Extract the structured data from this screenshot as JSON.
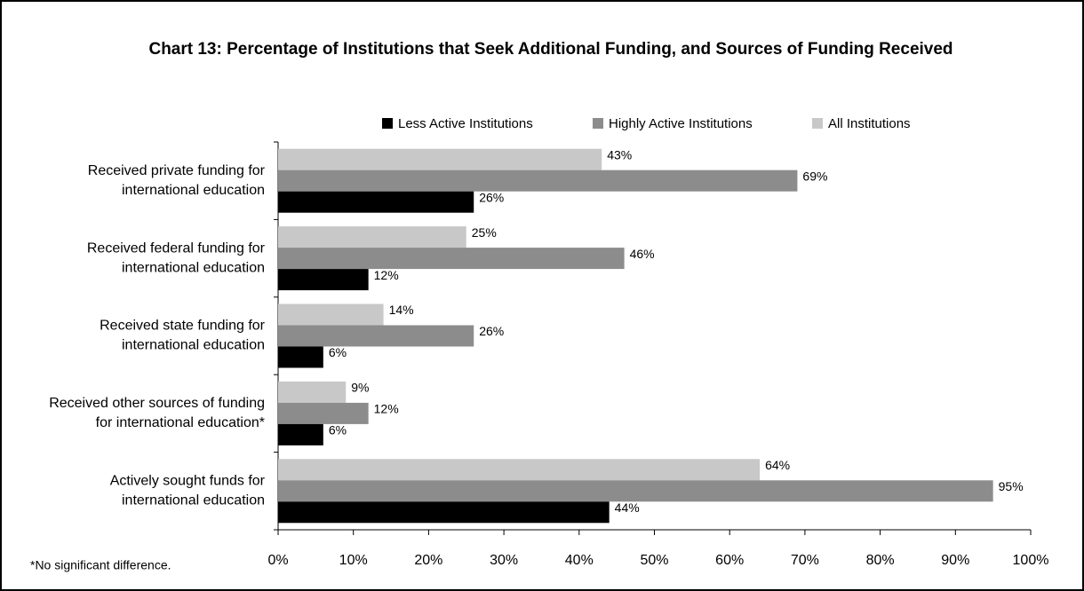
{
  "chart_data": {
    "type": "barh",
    "title": "Chart 13: Percentage of Institutions that Seek Additional Funding, and Sources of Funding Received",
    "categories": [
      [
        "Received private funding for",
        "international education"
      ],
      [
        "Received federal funding for",
        "international education"
      ],
      [
        "Received state funding for",
        "international education"
      ],
      [
        "Received other sources of funding",
        "for international education*"
      ],
      [
        "Actively sought funds for",
        "international education"
      ]
    ],
    "series": [
      {
        "name": "Less Active Institutions",
        "color": "#000000",
        "values": [
          26,
          12,
          6,
          6,
          44
        ],
        "value_labels": [
          "26%",
          "12%",
          "6%",
          "6%",
          "44%"
        ]
      },
      {
        "name": "Highly Active Institutions",
        "color": "#8c8c8c",
        "values": [
          69,
          46,
          26,
          12,
          95
        ],
        "value_labels": [
          "69%",
          "46%",
          "26%",
          "12%",
          "95%"
        ]
      },
      {
        "name": "All Institutions",
        "color": "#c8c8c8",
        "values": [
          43,
          25,
          14,
          9,
          64
        ],
        "value_labels": [
          "43%",
          "25%",
          "14%",
          "9%",
          "64%"
        ]
      }
    ],
    "xlim": [
      0,
      100
    ],
    "xticks": [
      {
        "value": 0,
        "label": "0%"
      },
      {
        "value": 10,
        "label": "10%"
      },
      {
        "value": 20,
        "label": "20%"
      },
      {
        "value": 30,
        "label": "30%"
      },
      {
        "value": 40,
        "label": "40%"
      },
      {
        "value": 50,
        "label": "50%"
      },
      {
        "value": 60,
        "label": "60%"
      },
      {
        "value": 70,
        "label": "70%"
      },
      {
        "value": 80,
        "label": "80%"
      },
      {
        "value": 90,
        "label": "90%"
      },
      {
        "value": 100,
        "label": "100%"
      }
    ],
    "legend": "top",
    "footnote": "*No significant difference."
  }
}
